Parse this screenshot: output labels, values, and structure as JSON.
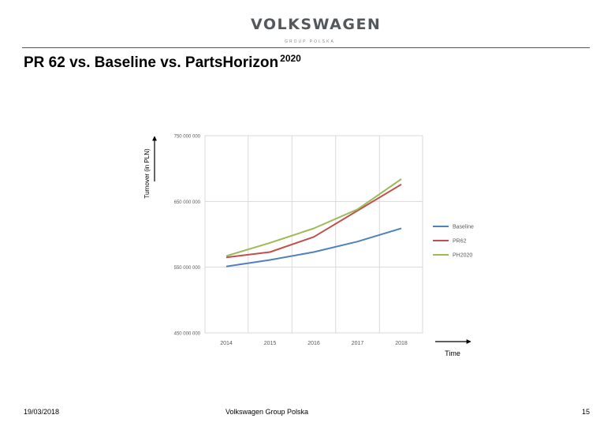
{
  "header": {
    "brand": "VOLKSWAGEN",
    "brand_sub": "GROUP POLSKA",
    "title": "PR 62 vs. Baseline vs. PartsHorizon",
    "title_sup": "2020"
  },
  "footer": {
    "date": "19/03/2018",
    "center": "Volkswagen Group Polska",
    "page": "15"
  },
  "colors": {
    "baseline": "#4f81bd",
    "pr62": "#c0504d",
    "ph2020": "#9bbb59",
    "grid": "#d9d9d9",
    "axis_text": "#595959"
  },
  "chart_data": {
    "type": "line",
    "title": "",
    "xlabel": "Time",
    "ylabel": "Turnover (in PLN)",
    "categories": [
      "2014",
      "2015",
      "2016",
      "2017",
      "2018"
    ],
    "ylim": [
      450000000,
      750000000
    ],
    "yticks": [
      450000000,
      550000000,
      650000000,
      750000000
    ],
    "ytick_labels": [
      "450 000 000",
      "550 000 000",
      "650 000 000",
      "750 000 000"
    ],
    "grid": true,
    "legend_position": "right",
    "series": [
      {
        "name": "Baseline",
        "color": "#4f81bd",
        "values": [
          551000000,
          561000000,
          573000000,
          589000000,
          609000000
        ]
      },
      {
        "name": "PR62",
        "color": "#c0504d",
        "values": [
          565000000,
          573000000,
          596000000,
          636000000,
          676000000
        ]
      },
      {
        "name": "PH2020",
        "color": "#9bbb59",
        "values": [
          567000000,
          587000000,
          609000000,
          638000000,
          684000000
        ]
      }
    ]
  }
}
